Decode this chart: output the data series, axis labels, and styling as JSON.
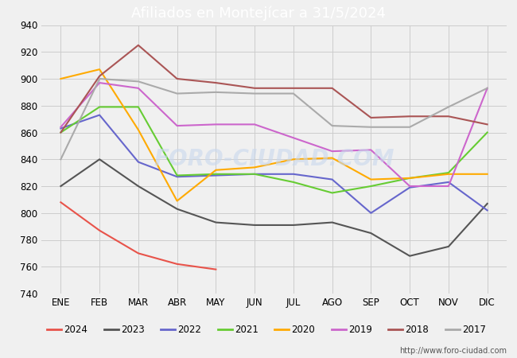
{
  "title": "Afiliados en Montejícar a 31/5/2024",
  "title_color": "white",
  "title_bg_color": "#4472c4",
  "ylim": [
    740,
    940
  ],
  "yticks": [
    740,
    760,
    780,
    800,
    820,
    840,
    860,
    880,
    900,
    920,
    940
  ],
  "months": [
    "ENE",
    "FEB",
    "MAR",
    "ABR",
    "MAY",
    "JUN",
    "JUL",
    "AGO",
    "SEP",
    "OCT",
    "NOV",
    "DIC"
  ],
  "watermark": "FORO-CIUDAD.COM",
  "url": "http://www.foro-ciudad.com",
  "series": {
    "2024": {
      "color": "#e8534a",
      "data": [
        808,
        787,
        770,
        762,
        758,
        null,
        null,
        null,
        null,
        null,
        null,
        null
      ]
    },
    "2023": {
      "color": "#555555",
      "data": [
        820,
        840,
        820,
        803,
        793,
        791,
        791,
        793,
        785,
        768,
        775,
        807
      ]
    },
    "2022": {
      "color": "#6666cc",
      "data": [
        863,
        873,
        838,
        827,
        828,
        829,
        829,
        825,
        800,
        819,
        823,
        802
      ]
    },
    "2021": {
      "color": "#66cc33",
      "data": [
        860,
        879,
        879,
        828,
        829,
        829,
        823,
        815,
        820,
        826,
        830,
        860
      ]
    },
    "2020": {
      "color": "#ffaa00",
      "data": [
        900,
        907,
        862,
        809,
        832,
        834,
        840,
        841,
        825,
        826,
        829,
        829
      ]
    },
    "2019": {
      "color": "#cc66cc",
      "data": [
        864,
        897,
        893,
        865,
        866,
        866,
        856,
        846,
        847,
        820,
        820,
        893
      ]
    },
    "2018": {
      "color": "#aa5555",
      "data": [
        860,
        902,
        925,
        900,
        897,
        893,
        893,
        893,
        871,
        872,
        872,
        866
      ]
    },
    "2017": {
      "color": "#aaaaaa",
      "data": [
        840,
        900,
        898,
        889,
        890,
        889,
        889,
        865,
        864,
        864,
        879,
        893
      ]
    }
  },
  "legend_order": [
    "2024",
    "2023",
    "2022",
    "2021",
    "2020",
    "2019",
    "2018",
    "2017"
  ],
  "grid_color": "#cccccc",
  "bg_color": "#f0f0f0",
  "plot_bg_color": "#f0f0f0"
}
